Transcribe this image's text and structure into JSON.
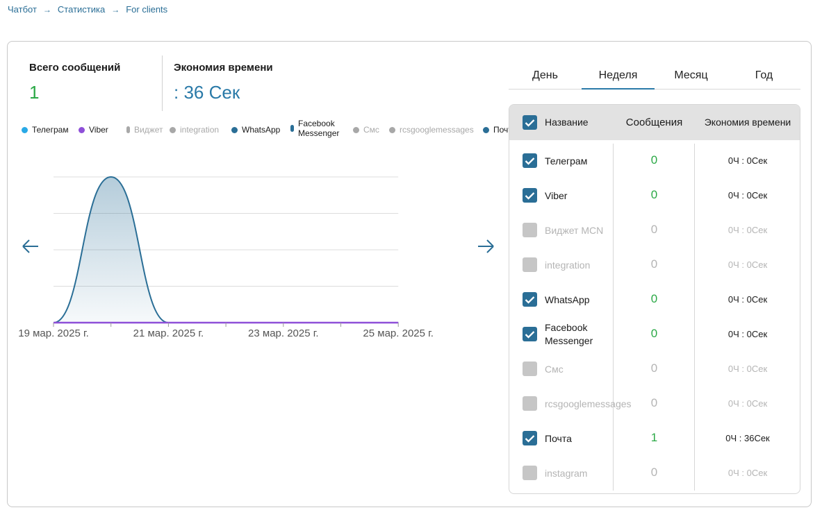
{
  "breadcrumb": [
    "Чатбот",
    "Статистика",
    "For clients"
  ],
  "stats": {
    "total_label": "Всего сообщений",
    "total_value": "1",
    "saving_label": "Экономия времени",
    "saving_value": ": 36 Сек"
  },
  "legend": [
    {
      "label": "Телеграм",
      "color": "#29a9e6",
      "shape": "dot",
      "active": true
    },
    {
      "label": "Viber",
      "color": "#8e4fd8",
      "shape": "dot",
      "active": true
    },
    {
      "label": "Виджет",
      "color": "#a8a8a8",
      "shape": "pill",
      "active": false
    },
    {
      "label": "integration",
      "color": "#a8a8a8",
      "shape": "dot",
      "active": false
    },
    {
      "label": "WhatsApp",
      "color": "#2a6e96",
      "shape": "dot",
      "active": true
    },
    {
      "label": "Facebook Messenger",
      "color": "#2a6e96",
      "shape": "pill",
      "active": true
    },
    {
      "label": "Смс",
      "color": "#a8a8a8",
      "shape": "dot",
      "active": false
    },
    {
      "label": "rcsgooglemessages",
      "color": "#a8a8a8",
      "shape": "dot",
      "active": false
    },
    {
      "label": "Почта",
      "color": "#2a6e96",
      "shape": "dot",
      "active": true
    }
  ],
  "chart_data": {
    "type": "area",
    "x": [
      "19 мар. 2025 г.",
      "20 мар. 2025 г.",
      "21 мар. 2025 г.",
      "22 мар. 2025 г.",
      "23 мар. 2025 г.",
      "24 мар. 2025 г.",
      "25 мар. 2025 г."
    ],
    "x_tick_labels": [
      "19 мар. 2025 г.",
      "21 мар. 2025 г.",
      "23 мар. 2025 г.",
      "25 мар. 2025 г."
    ],
    "series": [
      {
        "name": "Почта",
        "values": [
          0,
          1,
          0,
          0,
          0,
          0,
          0
        ],
        "color": "#2a6e96"
      },
      {
        "name": "Viber",
        "values": [
          0,
          0,
          0,
          0,
          0,
          0,
          0
        ],
        "color": "#8e4fd8"
      }
    ],
    "ylim": [
      0,
      1
    ],
    "grid": true,
    "legend": "top"
  },
  "tabs": [
    {
      "label": "День",
      "active": false
    },
    {
      "label": "Неделя",
      "active": true
    },
    {
      "label": "Месяц",
      "active": false
    },
    {
      "label": "Год",
      "active": false
    }
  ],
  "table": {
    "headers": {
      "name": "Название",
      "messages": "Сообщения",
      "saving": "Экономия времени"
    },
    "rows": [
      {
        "name": "Телеграм",
        "messages": "0",
        "saving": "0Ч : 0Сек",
        "checked": true
      },
      {
        "name": "Viber",
        "messages": "0",
        "saving": "0Ч : 0Сек",
        "checked": true
      },
      {
        "name": "Виджет MCN",
        "messages": "0",
        "saving": "0Ч : 0Сек",
        "checked": false
      },
      {
        "name": "integration",
        "messages": "0",
        "saving": "0Ч : 0Сек",
        "checked": false
      },
      {
        "name": "WhatsApp",
        "messages": "0",
        "saving": "0Ч : 0Сек",
        "checked": true
      },
      {
        "name": "Facebook Messenger",
        "messages": "0",
        "saving": "0Ч : 0Сек",
        "checked": true
      },
      {
        "name": "Смс",
        "messages": "0",
        "saving": "0Ч : 0Сек",
        "checked": false
      },
      {
        "name": "rcsgooglemessages",
        "messages": "0",
        "saving": "0Ч : 0Сек",
        "checked": false
      },
      {
        "name": "Почта",
        "messages": "1",
        "saving": "0Ч : 36Сек",
        "checked": true
      },
      {
        "name": "instagram",
        "messages": "0",
        "saving": "0Ч : 0Сек",
        "checked": false
      }
    ]
  },
  "colors": {
    "accent": "#2a7aa8",
    "green": "#2aa845",
    "viber": "#8e4fd8"
  },
  "icons": {
    "prev": "arrow-left-icon",
    "next": "arrow-right-icon",
    "check": "checkmark-icon",
    "crumb_sep": "arrow-right-small-icon"
  }
}
